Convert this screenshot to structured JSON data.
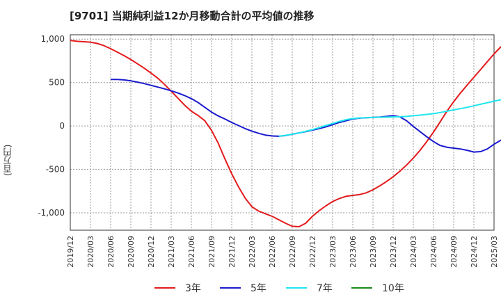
{
  "chart_data": {
    "type": "line",
    "title": "[9701]  当期純利益12か月移動合計の平均値の推移",
    "ylabel": "(百万円)",
    "ylim": [
      -1200,
      1050
    ],
    "yticks": [
      1000,
      500,
      0,
      -500,
      -1000
    ],
    "ytick_labels": [
      "1,000",
      "500",
      "0",
      "-500",
      "-1,000"
    ],
    "x_labels": [
      "2019/12",
      "2020/03",
      "2020/06",
      "2020/09",
      "2020/12",
      "2021/03",
      "2021/06",
      "2021/09",
      "2021/12",
      "2022/03",
      "2022/06",
      "2022/09",
      "2022/12",
      "2023/03",
      "2023/06",
      "2023/09",
      "2023/12",
      "2024/03",
      "2024/06",
      "2024/09",
      "2024/12",
      "2025/03"
    ],
    "grid": true,
    "legend_position": "bottom",
    "series": [
      {
        "name": "3年",
        "color": "#e31a1c",
        "points": [
          [
            "2019/12",
            985
          ],
          [
            "2020/01",
            975
          ],
          [
            "2020/02",
            970
          ],
          [
            "2020/03",
            965
          ],
          [
            "2020/04",
            950
          ],
          [
            "2020/05",
            925
          ],
          [
            "2020/06",
            890
          ],
          [
            "2020/07",
            850
          ],
          [
            "2020/08",
            810
          ],
          [
            "2020/09",
            765
          ],
          [
            "2020/10",
            715
          ],
          [
            "2020/11",
            665
          ],
          [
            "2020/12",
            610
          ],
          [
            "2021/01",
            550
          ],
          [
            "2021/02",
            480
          ],
          [
            "2021/03",
            400
          ],
          [
            "2021/04",
            320
          ],
          [
            "2021/05",
            240
          ],
          [
            "2021/06",
            170
          ],
          [
            "2021/07",
            120
          ],
          [
            "2021/08",
            60
          ],
          [
            "2021/09",
            -50
          ],
          [
            "2021/10",
            -200
          ],
          [
            "2021/11",
            -380
          ],
          [
            "2021/12",
            -550
          ],
          [
            "2022/01",
            -700
          ],
          [
            "2022/02",
            -830
          ],
          [
            "2022/03",
            -930
          ],
          [
            "2022/04",
            -980
          ],
          [
            "2022/05",
            -1010
          ],
          [
            "2022/06",
            -1040
          ],
          [
            "2022/07",
            -1080
          ],
          [
            "2022/08",
            -1120
          ],
          [
            "2022/09",
            -1155
          ],
          [
            "2022/10",
            -1160
          ],
          [
            "2022/11",
            -1120
          ],
          [
            "2022/12",
            -1040
          ],
          [
            "2023/01",
            -975
          ],
          [
            "2023/02",
            -920
          ],
          [
            "2023/03",
            -870
          ],
          [
            "2023/04",
            -835
          ],
          [
            "2023/05",
            -810
          ],
          [
            "2023/06",
            -800
          ],
          [
            "2023/07",
            -790
          ],
          [
            "2023/08",
            -770
          ],
          [
            "2023/09",
            -735
          ],
          [
            "2023/10",
            -690
          ],
          [
            "2023/11",
            -640
          ],
          [
            "2023/12",
            -585
          ],
          [
            "2024/01",
            -520
          ],
          [
            "2024/02",
            -450
          ],
          [
            "2024/03",
            -370
          ],
          [
            "2024/04",
            -280
          ],
          [
            "2024/05",
            -180
          ],
          [
            "2024/06",
            -70
          ],
          [
            "2024/07",
            50
          ],
          [
            "2024/08",
            170
          ],
          [
            "2024/09",
            280
          ],
          [
            "2024/10",
            380
          ],
          [
            "2024/11",
            470
          ],
          [
            "2024/12",
            560
          ],
          [
            "2025/01",
            650
          ],
          [
            "2025/02",
            740
          ],
          [
            "2025/03",
            830
          ],
          [
            "2025/04",
            910
          ],
          [
            "2025/05",
            970
          ],
          [
            "2025/06",
            1000
          ]
        ]
      },
      {
        "name": "5年",
        "color": "#1a1acd",
        "points": [
          [
            "2020/06",
            535
          ],
          [
            "2020/07",
            535
          ],
          [
            "2020/08",
            530
          ],
          [
            "2020/09",
            520
          ],
          [
            "2020/10",
            505
          ],
          [
            "2020/11",
            488
          ],
          [
            "2020/12",
            468
          ],
          [
            "2021/01",
            448
          ],
          [
            "2021/02",
            428
          ],
          [
            "2021/03",
            405
          ],
          [
            "2021/04",
            380
          ],
          [
            "2021/05",
            350
          ],
          [
            "2021/06",
            315
          ],
          [
            "2021/07",
            270
          ],
          [
            "2021/08",
            215
          ],
          [
            "2021/09",
            160
          ],
          [
            "2021/10",
            115
          ],
          [
            "2021/11",
            80
          ],
          [
            "2021/12",
            40
          ],
          [
            "2022/01",
            5
          ],
          [
            "2022/02",
            -30
          ],
          [
            "2022/03",
            -60
          ],
          [
            "2022/04",
            -85
          ],
          [
            "2022/05",
            -105
          ],
          [
            "2022/06",
            -115
          ],
          [
            "2022/07",
            -118
          ],
          [
            "2022/08",
            -110
          ],
          [
            "2022/09",
            -95
          ],
          [
            "2022/10",
            -80
          ],
          [
            "2022/11",
            -65
          ],
          [
            "2022/12",
            -48
          ],
          [
            "2023/01",
            -30
          ],
          [
            "2023/02",
            -10
          ],
          [
            "2023/03",
            15
          ],
          [
            "2023/04",
            40
          ],
          [
            "2023/05",
            60
          ],
          [
            "2023/06",
            80
          ],
          [
            "2023/07",
            90
          ],
          [
            "2023/08",
            95
          ],
          [
            "2023/09",
            98
          ],
          [
            "2023/10",
            102
          ],
          [
            "2023/11",
            110
          ],
          [
            "2023/12",
            118
          ],
          [
            "2024/01",
            105
          ],
          [
            "2024/02",
            60
          ],
          [
            "2024/03",
            -5
          ],
          [
            "2024/04",
            -65
          ],
          [
            "2024/05",
            -125
          ],
          [
            "2024/06",
            -180
          ],
          [
            "2024/07",
            -225
          ],
          [
            "2024/08",
            -245
          ],
          [
            "2024/09",
            -255
          ],
          [
            "2024/10",
            -265
          ],
          [
            "2024/11",
            -280
          ],
          [
            "2024/12",
            -300
          ],
          [
            "2025/01",
            -295
          ],
          [
            "2025/02",
            -265
          ],
          [
            "2025/03",
            -210
          ],
          [
            "2025/04",
            -165
          ],
          [
            "2025/05",
            -125
          ],
          [
            "2025/06",
            -95
          ]
        ]
      },
      {
        "name": "7年",
        "color": "#1ee5ef",
        "points": [
          [
            "2022/07",
            -118
          ],
          [
            "2022/08",
            -108
          ],
          [
            "2022/09",
            -95
          ],
          [
            "2022/10",
            -80
          ],
          [
            "2022/11",
            -62
          ],
          [
            "2022/12",
            -42
          ],
          [
            "2023/01",
            -20
          ],
          [
            "2023/02",
            5
          ],
          [
            "2023/03",
            28
          ],
          [
            "2023/04",
            52
          ],
          [
            "2023/05",
            72
          ],
          [
            "2023/06",
            85
          ],
          [
            "2023/07",
            92
          ],
          [
            "2023/08",
            95
          ],
          [
            "2023/09",
            98
          ],
          [
            "2023/10",
            100
          ],
          [
            "2023/11",
            102
          ],
          [
            "2023/12",
            104
          ],
          [
            "2024/01",
            106
          ],
          [
            "2024/02",
            110
          ],
          [
            "2024/03",
            118
          ],
          [
            "2024/04",
            125
          ],
          [
            "2024/05",
            133
          ],
          [
            "2024/06",
            142
          ],
          [
            "2024/07",
            155
          ],
          [
            "2024/08",
            170
          ],
          [
            "2024/09",
            185
          ],
          [
            "2024/10",
            200
          ],
          [
            "2024/11",
            215
          ],
          [
            "2024/12",
            232
          ],
          [
            "2025/01",
            250
          ],
          [
            "2025/02",
            268
          ],
          [
            "2025/03",
            285
          ],
          [
            "2025/04",
            302
          ],
          [
            "2025/05",
            320
          ],
          [
            "2025/06",
            340
          ]
        ]
      },
      {
        "name": "10年",
        "color": "#1a8a1a",
        "points": []
      }
    ]
  }
}
